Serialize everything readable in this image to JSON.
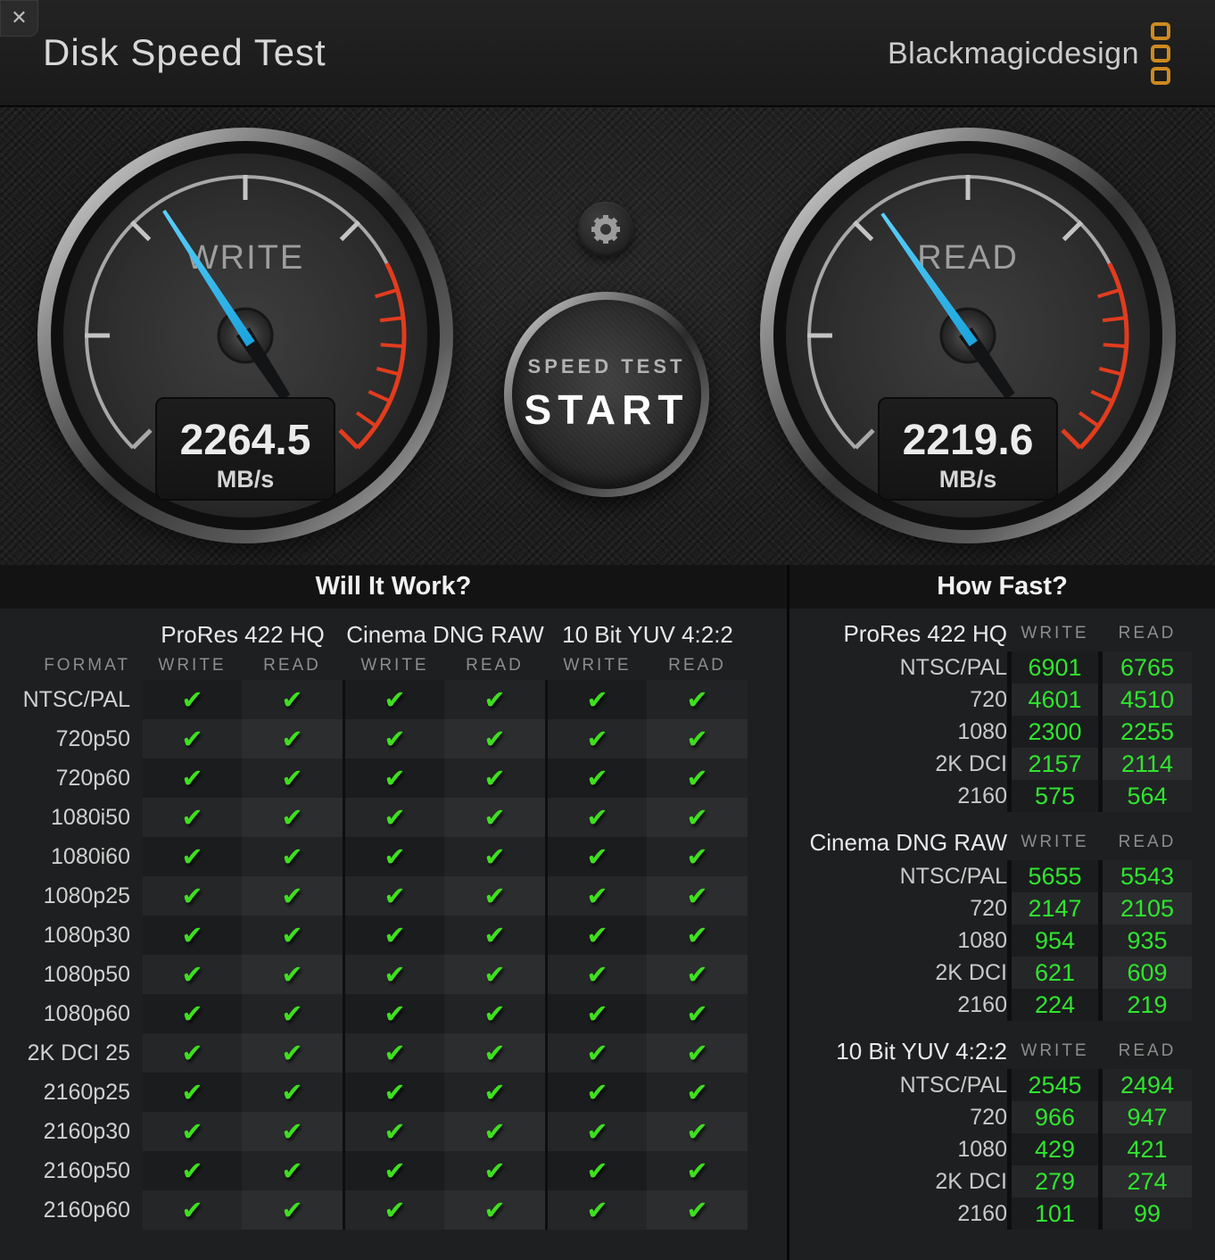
{
  "window": {
    "title": "Disk Speed Test",
    "close_label": "✕",
    "brand": "Blackmagicdesign"
  },
  "gauges": {
    "write": {
      "label": "WRITE",
      "value": "2264.5",
      "unit": "MB/s"
    },
    "read": {
      "label": "READ",
      "value": "2219.6",
      "unit": "MB/s"
    }
  },
  "start_button": {
    "line1": "SPEED TEST",
    "line2": "START"
  },
  "settings_button": {
    "icon": "gear-icon"
  },
  "will_it_work": {
    "title": "Will It Work?",
    "format_header": "FORMAT",
    "groups": [
      "ProRes 422 HQ",
      "Cinema DNG RAW",
      "10 Bit YUV 4:2:2"
    ],
    "col_headers": [
      "WRITE",
      "READ"
    ],
    "check_glyph": "✔",
    "rows": [
      {
        "format": "NTSC/PAL",
        "checks": [
          true,
          true,
          true,
          true,
          true,
          true
        ]
      },
      {
        "format": "720p50",
        "checks": [
          true,
          true,
          true,
          true,
          true,
          true
        ]
      },
      {
        "format": "720p60",
        "checks": [
          true,
          true,
          true,
          true,
          true,
          true
        ]
      },
      {
        "format": "1080i50",
        "checks": [
          true,
          true,
          true,
          true,
          true,
          true
        ]
      },
      {
        "format": "1080i60",
        "checks": [
          true,
          true,
          true,
          true,
          true,
          true
        ]
      },
      {
        "format": "1080p25",
        "checks": [
          true,
          true,
          true,
          true,
          true,
          true
        ]
      },
      {
        "format": "1080p30",
        "checks": [
          true,
          true,
          true,
          true,
          true,
          true
        ]
      },
      {
        "format": "1080p50",
        "checks": [
          true,
          true,
          true,
          true,
          true,
          true
        ]
      },
      {
        "format": "1080p60",
        "checks": [
          true,
          true,
          true,
          true,
          true,
          true
        ]
      },
      {
        "format": "2K DCI 25",
        "checks": [
          true,
          true,
          true,
          true,
          true,
          true
        ]
      },
      {
        "format": "2160p25",
        "checks": [
          true,
          true,
          true,
          true,
          true,
          true
        ]
      },
      {
        "format": "2160p30",
        "checks": [
          true,
          true,
          true,
          true,
          true,
          true
        ]
      },
      {
        "format": "2160p50",
        "checks": [
          true,
          true,
          true,
          true,
          true,
          true
        ]
      },
      {
        "format": "2160p60",
        "checks": [
          true,
          true,
          true,
          true,
          true,
          true
        ]
      }
    ]
  },
  "how_fast": {
    "title": "How Fast?",
    "col_headers": [
      "WRITE",
      "READ"
    ],
    "sections": [
      {
        "name": "ProRes 422 HQ",
        "rows": [
          {
            "label": "NTSC/PAL",
            "write": "6901",
            "read": "6765"
          },
          {
            "label": "720",
            "write": "4601",
            "read": "4510"
          },
          {
            "label": "1080",
            "write": "2300",
            "read": "2255"
          },
          {
            "label": "2K DCI",
            "write": "2157",
            "read": "2114"
          },
          {
            "label": "2160",
            "write": "575",
            "read": "564"
          }
        ]
      },
      {
        "name": "Cinema DNG RAW",
        "rows": [
          {
            "label": "NTSC/PAL",
            "write": "5655",
            "read": "5543"
          },
          {
            "label": "720",
            "write": "2147",
            "read": "2105"
          },
          {
            "label": "1080",
            "write": "954",
            "read": "935"
          },
          {
            "label": "2K DCI",
            "write": "621",
            "read": "609"
          },
          {
            "label": "2160",
            "write": "224",
            "read": "219"
          }
        ]
      },
      {
        "name": "10 Bit YUV 4:2:2",
        "rows": [
          {
            "label": "NTSC/PAL",
            "write": "2545",
            "read": "2494"
          },
          {
            "label": "720",
            "write": "966",
            "read": "947"
          },
          {
            "label": "1080",
            "write": "429",
            "read": "421"
          },
          {
            "label": "2K DCI",
            "write": "279",
            "read": "274"
          },
          {
            "label": "2160",
            "write": "101",
            "read": "99"
          }
        ]
      }
    ]
  },
  "colors": {
    "needle_blue": "#35c4f4",
    "check_green": "#3fdf1f",
    "value_green": "#30e42f",
    "brand_orange": "#cd8a20",
    "redline_red": "#e23c1e"
  }
}
